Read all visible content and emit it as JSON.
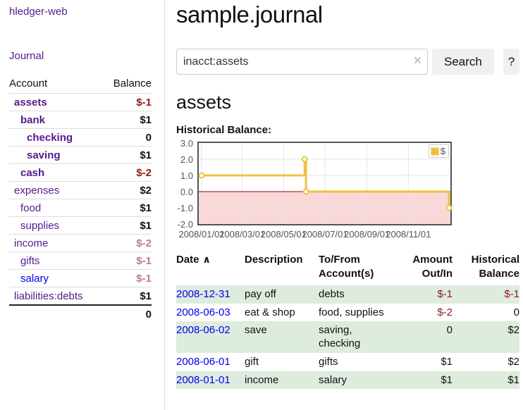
{
  "app": {
    "brand": "hledger-web",
    "nav_journal": "Journal"
  },
  "sidebar": {
    "account_header": "Account",
    "balance_header": "Balance",
    "accounts": [
      {
        "name": "assets",
        "indent": 1,
        "bold": true,
        "balance": "$-1",
        "negative": true
      },
      {
        "name": "bank",
        "indent": 2,
        "bold": true,
        "balance": "$1"
      },
      {
        "name": "checking",
        "indent": 3,
        "bold": true,
        "balance": "0"
      },
      {
        "name": "saving",
        "indent": 3,
        "bold": true,
        "balance": "$1"
      },
      {
        "name": "cash",
        "indent": 2,
        "bold": true,
        "balance": "$-2",
        "negative": true
      },
      {
        "name": "expenses",
        "indent": 1,
        "bold": false,
        "balance": "$2"
      },
      {
        "name": "food",
        "indent": 2,
        "bold": false,
        "balance": "$1"
      },
      {
        "name": "supplies",
        "indent": 2,
        "bold": false,
        "balance": "$1"
      },
      {
        "name": "income",
        "indent": 1,
        "bold": false,
        "balance": "$-2",
        "dimmed": true
      },
      {
        "name": "gifts",
        "indent": 2,
        "bold": false,
        "balance": "$-1",
        "dimmed": true
      },
      {
        "name": "salary",
        "indent": 2,
        "bold": false,
        "balance": "$-1",
        "dimmed": true,
        "unvisited": true
      },
      {
        "name": "liabilities:debts",
        "indent": 1,
        "bold": false,
        "balance": "$1"
      }
    ],
    "total": "0"
  },
  "header": {
    "title": "sample.journal"
  },
  "search": {
    "value": "inacct:assets",
    "clear_icon": "×",
    "button_label": "Search",
    "help_label": "?"
  },
  "account_page": {
    "heading": "assets",
    "chart_title": "Historical Balance:"
  },
  "chart_data": {
    "type": "line",
    "title": "Historical Balance:",
    "step": true,
    "markers": true,
    "x": [
      "2008-01-01",
      "2008-06-01",
      "2008-06-03",
      "2008-12-31"
    ],
    "series": [
      {
        "name": "$",
        "color": "#edc240",
        "values": [
          1,
          2,
          0,
          -1
        ]
      }
    ],
    "xlim": [
      "2008-01-01",
      "2008-12-31"
    ],
    "ylim": [
      -2,
      3
    ],
    "yticks": [
      3,
      2,
      1,
      0,
      -1,
      -2
    ],
    "ytick_labels": [
      "3.0",
      "2.0",
      "1.0",
      "0.0",
      "-1.0",
      "-2.0"
    ],
    "xticks": [
      "2008-01-01",
      "2008-03-01",
      "2008-05-01",
      "2008-07-01",
      "2008-09-01",
      "2008-11-01"
    ],
    "xtick_labels": [
      "2008/01/01",
      "2008/03/01",
      "2008/05/01",
      "2008/07/01",
      "2008/09/01",
      "2008/11/01"
    ],
    "grid": true,
    "legend_position": "top-right",
    "negative_region_fill": "#f9d8d8",
    "zero_line_color": "#990000"
  },
  "register": {
    "col_date": "Date",
    "sort_icon": "∧",
    "col_description": "Description",
    "col_accounts": "To/From\nAccount(s)",
    "col_amount": "Amount\nOut/In",
    "col_balance": "Historical\nBalance",
    "rows": [
      {
        "date": "2008-12-31",
        "description": "pay off",
        "accounts": "debts",
        "amount": "$-1",
        "amount_negative": true,
        "balance": "$-1",
        "balance_negative": true
      },
      {
        "date": "2008-06-03",
        "description": "eat & shop",
        "accounts": "food, supplies",
        "amount": "$-2",
        "amount_negative": true,
        "balance": "0"
      },
      {
        "date": "2008-06-02",
        "description": "save",
        "accounts": "saving, checking",
        "amount": "0",
        "balance": "$2"
      },
      {
        "date": "2008-06-01",
        "description": "gift",
        "accounts": "gifts",
        "amount": "$1",
        "balance": "$2"
      },
      {
        "date": "2008-01-01",
        "description": "income",
        "accounts": "salary",
        "amount": "$1",
        "balance": "$1"
      }
    ]
  },
  "colors": {
    "purple": "#551a8b",
    "blue": "#0000ee",
    "neg": "#8b1c1c",
    "dim": "#bd7d7d",
    "row_green": "#deecde",
    "chart_yellow": "#edc240",
    "pink": "#f9d8d8",
    "zero": "#990000",
    "tick": "#545454",
    "border_gray": "#dddddd"
  }
}
